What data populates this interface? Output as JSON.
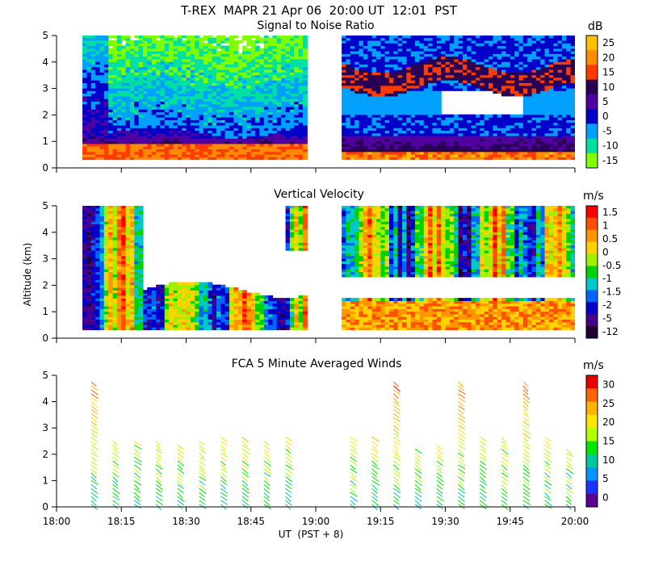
{
  "figure": {
    "header": "T-REX  MAPR 21 Apr 06  20:00 UT  12:01  PST",
    "xlabel": "UT  (PST + 8)",
    "ylabel": "Altitude (km)",
    "x_ticks": [
      "18:00",
      "18:15",
      "18:30",
      "18:45",
      "19:00",
      "19:15",
      "19:30",
      "19:45",
      "20:00"
    ]
  },
  "chart_data": [
    {
      "type": "heatmap",
      "title": "Signal to Noise Ratio",
      "units": "dB",
      "x_range": [
        "18:00",
        "20:00"
      ],
      "ylim": [
        0,
        5
      ],
      "y_ticks": [
        "0",
        "1",
        "2",
        "3",
        "4",
        "5"
      ],
      "data_gap": [
        "18:58",
        "19:06"
      ],
      "colorbar_labels": [
        "25",
        "20",
        "15",
        "10",
        "5",
        "0",
        "-5",
        "-10",
        "-15"
      ],
      "colorbar_colors": [
        "#ffc000",
        "#ff8c00",
        "#ff3c00",
        "#2a0055",
        "#5000a0",
        "#0000c8",
        "#00a0ff",
        "#00e0a0",
        "#80ff00"
      ]
    },
    {
      "type": "heatmap",
      "title": "Vertical Velocity",
      "units": "m/s",
      "x_range": [
        "18:00",
        "20:00"
      ],
      "ylim": [
        0,
        5
      ],
      "y_ticks": [
        "0",
        "1",
        "2",
        "3",
        "4",
        "5"
      ],
      "data_gap": [
        "18:58",
        "19:06"
      ],
      "colorbar_labels": [
        "1.5",
        "1",
        "0.5",
        "0",
        "-0.5",
        "-1",
        "-1.5",
        "-2",
        "-5",
        "-12"
      ],
      "colorbar_colors": [
        "#ff0000",
        "#ff5000",
        "#ff9600",
        "#ffd200",
        "#a0f000",
        "#00d200",
        "#00c8c8",
        "#0064ff",
        "#0000c8",
        "#46008c",
        "#1e0032"
      ]
    },
    {
      "type": "barbs",
      "title": "FCA 5 Minute Averaged Winds",
      "units": "m/s",
      "x_range": [
        "18:00",
        "20:00"
      ],
      "ylim": [
        0,
        5
      ],
      "y_ticks": [
        "0",
        "1",
        "2",
        "3",
        "4",
        "5"
      ],
      "colorbar_labels": [
        "30",
        "25",
        "20",
        "15",
        "10",
        "5",
        "0"
      ],
      "colorbar_colors": [
        "#e60000",
        "#ff6400",
        "#ffb400",
        "#ffe600",
        "#b4ff00",
        "#00e600",
        "#00c8a0",
        "#0096ff",
        "#1e32ff",
        "#5a0096"
      ]
    }
  ]
}
